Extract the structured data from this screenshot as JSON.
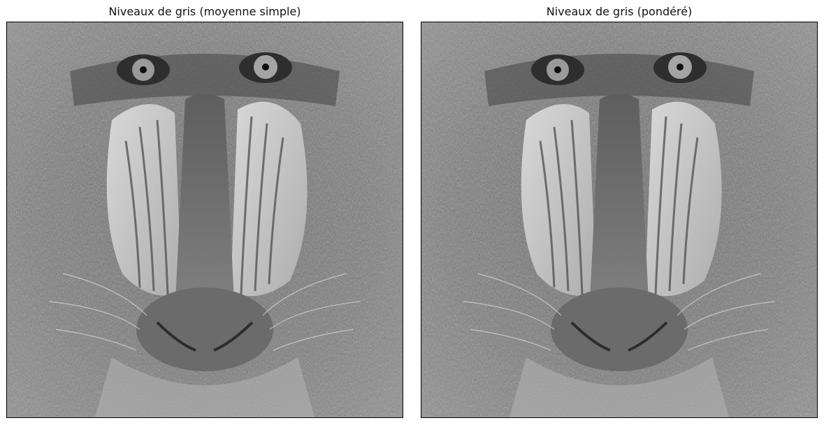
{
  "figure": {
    "panels": [
      {
        "title": "Niveaux de gris (moyenne simple)",
        "image": "grayscale-mandrill-face"
      },
      {
        "title": "Niveaux de gris (pondéré)",
        "image": "grayscale-mandrill-face"
      }
    ]
  }
}
